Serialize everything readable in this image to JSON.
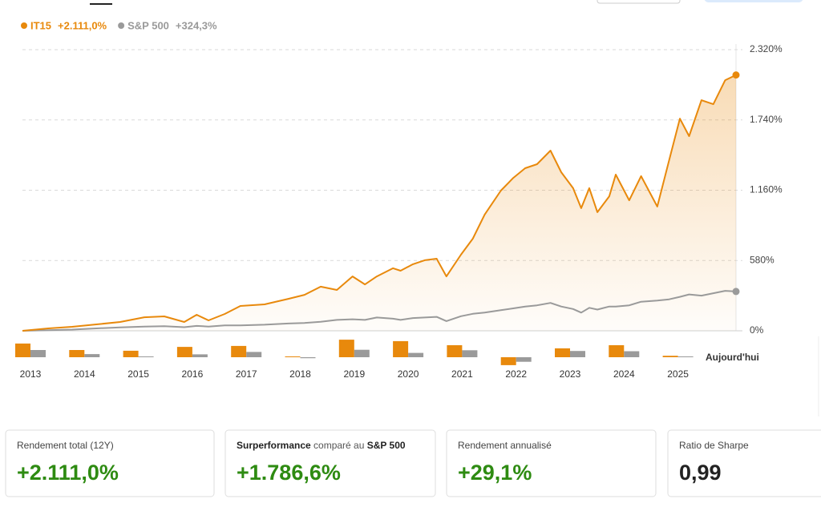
{
  "chart_data": [
    {
      "type": "line",
      "x": [
        2013.35,
        2013.83,
        2014.27,
        2014.72,
        2015.16,
        2015.61,
        2015.98,
        2016.35,
        2016.58,
        2016.8,
        2017.1,
        2017.39,
        2017.84,
        2018.28,
        2018.58,
        2018.88,
        2019.18,
        2019.47,
        2019.7,
        2019.92,
        2020.22,
        2020.36,
        2020.59,
        2020.81,
        2021.03,
        2021.21,
        2021.48,
        2021.7,
        2021.92,
        2022.22,
        2022.45,
        2022.67,
        2022.89,
        2023.14,
        2023.34,
        2023.56,
        2023.71,
        2023.86,
        2024.01,
        2024.23,
        2024.35,
        2024.6,
        2024.82,
        2025.12,
        2025.34,
        2025.54,
        2025.71,
        2025.94,
        2026.16,
        2026.38,
        2026.58
      ],
      "series": [
        {
          "name": "IT15",
          "total_label": "+2.111,0%",
          "color": "#e8890c",
          "values": [
            0,
            20,
            33,
            53,
            73,
            112,
            119,
            73,
            132,
            86,
            139,
            205,
            218,
            264,
            297,
            364,
            337,
            449,
            383,
            449,
            516,
            496,
            549,
            582,
            595,
            449,
            628,
            760,
            959,
            1157,
            1262,
            1342,
            1375,
            1487,
            1309,
            1177,
            1012,
            1177,
            979,
            1110,
            1289,
            1077,
            1276,
            1025,
            1408,
            1751,
            1606,
            1903,
            1870,
            2068,
            2111
          ]
        },
        {
          "name": "S&P 500",
          "total_label": "+324,3%",
          "color": "#9a9a9a",
          "values": [
            0,
            5,
            10,
            20,
            28,
            35,
            38,
            30,
            40,
            35,
            45,
            45,
            50,
            60,
            65,
            75,
            90,
            95,
            90,
            110,
            100,
            90,
            105,
            110,
            115,
            80,
            120,
            140,
            150,
            170,
            185,
            200,
            210,
            230,
            200,
            180,
            150,
            190,
            175,
            200,
            200,
            210,
            240,
            250,
            260,
            280,
            300,
            290,
            310,
            330,
            324.3
          ]
        }
      ],
      "xlim": [
        2013.35,
        2026.58
      ],
      "ylim": [
        0,
        2320
      ],
      "yticks": [
        {
          "value": 0,
          "label": "0%"
        },
        {
          "value": 580,
          "label": "580%"
        },
        {
          "value": 1160,
          "label": "1.160%"
        },
        {
          "value": 1740,
          "label": "1.740%"
        },
        {
          "value": 2320,
          "label": "2.320%"
        }
      ],
      "grid": true
    },
    {
      "type": "bar",
      "categories": [
        "2013",
        "2014",
        "2015",
        "2016",
        "2017",
        "2018",
        "2019",
        "2020",
        "2021",
        "2022",
        "2023",
        "2024",
        "2025"
      ],
      "annotation": "Aujourd'hui",
      "series": [
        {
          "color": "#e8890c",
          "values": [
            57,
            30,
            27,
            43,
            47,
            2,
            73,
            67,
            50,
            -33,
            37,
            50,
            6
          ]
        },
        {
          "color": "#9a9a9a",
          "values": [
            30,
            13,
            1,
            12,
            22,
            -4,
            31,
            18,
            29,
            -19,
            26,
            25,
            2
          ]
        }
      ]
    }
  ],
  "cards": [
    {
      "label": "Rendement total (12Y)",
      "value": "+2.111,0%"
    },
    {
      "label_parts": [
        "Surperformance",
        " comparé au ",
        "S&P 500"
      ],
      "value": "+1.786,6%"
    },
    {
      "label": "Rendement annualisé",
      "value": "+29,1%"
    },
    {
      "label": "Ratio de Sharpe",
      "value": "0,99"
    }
  ]
}
